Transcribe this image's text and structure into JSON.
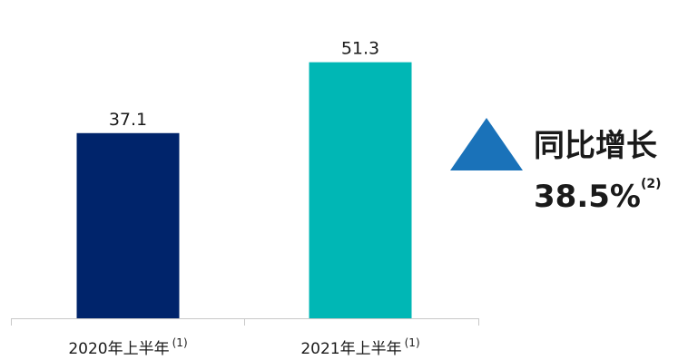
{
  "chart_data": {
    "type": "bar",
    "categories": [
      "2020年上半年",
      "2021年上半年"
    ],
    "category_note": "(1)",
    "values": [
      37.1,
      51.3
    ],
    "value_labels": [
      "37.1",
      "51.3"
    ],
    "colors": [
      "#00246b",
      "#00b7b5"
    ],
    "axis_color": "#c8c8c8",
    "title": "",
    "xlabel": "",
    "ylabel": "",
    "ylim": [
      0,
      56.5
    ],
    "grid": false
  },
  "growth": {
    "title": "同比增长",
    "value": "38.5%",
    "note": "(2)",
    "triangle_color": "#1a72b9",
    "icon": "up-triangle-icon"
  }
}
